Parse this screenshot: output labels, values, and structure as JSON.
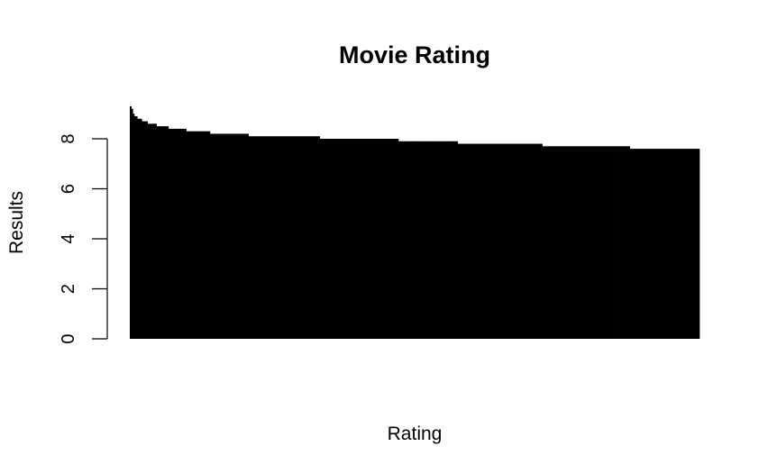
{
  "chart_data": {
    "type": "bar",
    "title": "Movie Rating",
    "xlabel": "Rating",
    "ylabel": "Results",
    "ylim": [
      0,
      9.3
    ],
    "yticks": [
      0,
      2,
      4,
      6,
      8
    ],
    "ytick_labels": [
      "0",
      "2",
      "4",
      "6",
      "8"
    ],
    "bar_color": "#000000",
    "grid": false,
    "legend": "none",
    "runs": [
      {
        "value": 9.3,
        "count": 1
      },
      {
        "value": 9.2,
        "count": 1
      },
      {
        "value": 9.0,
        "count": 1
      },
      {
        "value": 8.9,
        "count": 2
      },
      {
        "value": 8.8,
        "count": 3
      },
      {
        "value": 8.7,
        "count": 4
      },
      {
        "value": 8.6,
        "count": 6
      },
      {
        "value": 8.5,
        "count": 8
      },
      {
        "value": 8.4,
        "count": 12
      },
      {
        "value": 8.3,
        "count": 16
      },
      {
        "value": 8.2,
        "count": 26
      },
      {
        "value": 8.1,
        "count": 48
      },
      {
        "value": 8.0,
        "count": 53
      },
      {
        "value": 7.9,
        "count": 40
      },
      {
        "value": 7.8,
        "count": 57
      },
      {
        "value": 7.7,
        "count": 59
      },
      {
        "value": 7.6,
        "count": 47
      }
    ]
  }
}
